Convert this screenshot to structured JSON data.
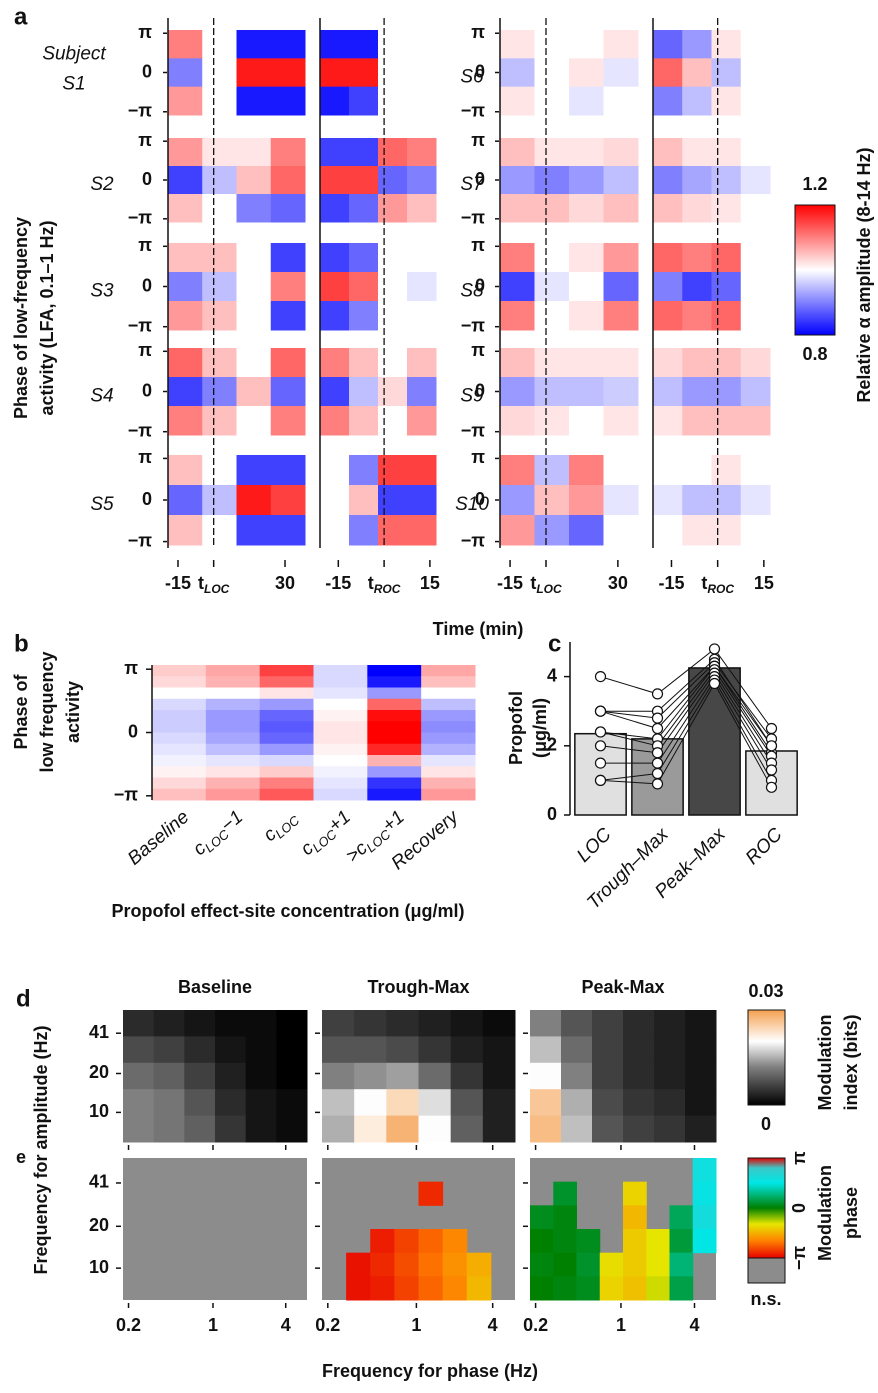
{
  "chart_data": [
    {
      "type": "phase-heatmaps",
      "panel": "a",
      "y_title": [
        "Phase of low-frequency",
        "activity (LFA, 0.1–1 Hz)"
      ],
      "x_title": "Time (min)",
      "ylim": [
        -3.4,
        3.4
      ],
      "yticks": [
        {
          "value": 3.14159,
          "label": "π"
        },
        0,
        {
          "value": -3.14159,
          "label": "−π"
        }
      ],
      "segments": [
        {
          "xlim": [
            -19.2,
            38.4
          ],
          "xticks": [
            -15,
            {
              "value": 0,
              "label": "t",
              "sub": "LOC"
            },
            30
          ]
        },
        {
          "xlim": [
            -21,
            17
          ],
          "xticks": [
            -15,
            {
              "value": 0,
              "label": "t",
              "sub": "ROC"
            },
            15
          ]
        }
      ],
      "colorbar": {
        "lim": [
          0.8,
          1.2
        ],
        "ticks": [
          0.8,
          1.2
        ],
        "title": "Relative α amplitude (8-14 Hz)"
      },
      "subjects": [
        {
          "note": "Subject",
          "name": "S1",
          "values": [
            [
              [
                1.1,
                1.0,
                0.82,
                0.82
              ],
              [
                0.9,
                1.0,
                1.18,
                1.18
              ],
              [
                1.08,
                1.0,
                0.82,
                0.82
              ]
            ],
            [
              [
                0.82,
                0.82,
                1.0,
                1.0
              ],
              [
                1.18,
                1.18,
                1.0,
                1.0
              ],
              [
                0.82,
                0.85,
                1.0,
                1.0
              ]
            ]
          ]
        },
        {
          "name": "S2",
          "values": [
            [
              [
                1.08,
                1.02,
                1.02,
                1.1
              ],
              [
                0.85,
                0.95,
                1.05,
                1.12
              ],
              [
                1.05,
                1.0,
                0.9,
                0.88
              ]
            ],
            [
              [
                0.85,
                0.85,
                1.12,
                1.1
              ],
              [
                1.15,
                1.15,
                0.88,
                0.9
              ],
              [
                0.85,
                0.88,
                1.08,
                1.05
              ]
            ]
          ]
        },
        {
          "name": "S3",
          "values": [
            [
              [
                1.05,
                1.05,
                1.0,
                0.85
              ],
              [
                0.9,
                0.95,
                1.0,
                1.1
              ],
              [
                1.08,
                1.05,
                1.0,
                0.85
              ]
            ],
            [
              [
                0.85,
                0.88,
                1.0,
                1.0
              ],
              [
                1.15,
                1.12,
                1.0,
                0.98
              ],
              [
                0.85,
                0.9,
                1.0,
                1.0
              ]
            ]
          ]
        },
        {
          "name": "S4",
          "values": [
            [
              [
                1.12,
                1.05,
                1.0,
                1.12
              ],
              [
                0.85,
                0.9,
                1.05,
                0.88
              ],
              [
                1.1,
                1.05,
                1.0,
                1.1
              ]
            ],
            [
              [
                1.1,
                1.05,
                1.0,
                1.05
              ],
              [
                0.85,
                0.95,
                1.03,
                0.9
              ],
              [
                1.1,
                1.05,
                1.0,
                1.08
              ]
            ]
          ]
        },
        {
          "name": "S5",
          "values": [
            [
              [
                1.05,
                1.0,
                0.85,
                0.85
              ],
              [
                0.88,
                0.95,
                1.18,
                1.15
              ],
              [
                1.05,
                1.0,
                0.85,
                0.85
              ]
            ],
            [
              [
                1.0,
                0.9,
                1.15,
                1.15
              ],
              [
                1.0,
                1.05,
                0.85,
                0.85
              ],
              [
                1.0,
                0.9,
                1.12,
                1.12
              ]
            ]
          ]
        },
        {
          "name": "S6",
          "values": [
            [
              [
                1.02,
                1.0,
                1.0,
                1.02
              ],
              [
                0.95,
                1.0,
                1.02,
                0.98
              ],
              [
                1.02,
                1.0,
                0.98,
                1.0
              ]
            ],
            [
              [
                0.88,
                0.92,
                1.02,
                1.0
              ],
              [
                1.12,
                1.05,
                0.95,
                1.0
              ],
              [
                0.9,
                0.95,
                1.02,
                1.0
              ]
            ]
          ]
        },
        {
          "name": "S7",
          "values": [
            [
              [
                1.05,
                1.02,
                1.02,
                1.03
              ],
              [
                0.92,
                0.9,
                0.92,
                0.95
              ],
              [
                1.05,
                1.05,
                1.03,
                1.05
              ]
            ],
            [
              [
                1.05,
                1.02,
                1.02,
                1.0
              ],
              [
                0.9,
                0.93,
                0.95,
                0.98
              ],
              [
                1.05,
                1.03,
                1.02,
                1.0
              ]
            ]
          ]
        },
        {
          "name": "S8",
          "values": [
            [
              [
                1.1,
                1.0,
                1.02,
                1.08
              ],
              [
                0.85,
                0.98,
                1.0,
                0.88
              ],
              [
                1.1,
                1.0,
                1.02,
                1.1
              ]
            ],
            [
              [
                1.12,
                1.1,
                1.12,
                1.0
              ],
              [
                0.9,
                0.85,
                0.88,
                1.0
              ],
              [
                1.12,
                1.1,
                1.12,
                1.0
              ]
            ]
          ]
        },
        {
          "name": "S9",
          "values": [
            [
              [
                1.05,
                1.02,
                1.02,
                1.02
              ],
              [
                0.92,
                0.95,
                0.95,
                0.96
              ],
              [
                1.03,
                1.02,
                1.0,
                1.02
              ]
            ],
            [
              [
                1.03,
                1.05,
                1.05,
                1.03
              ],
              [
                0.95,
                0.92,
                0.92,
                0.95
              ],
              [
                1.02,
                1.05,
                1.05,
                1.05
              ]
            ]
          ]
        },
        {
          "name": "S10",
          "values": [
            [
              [
                1.1,
                0.95,
                1.1,
                1.0
              ],
              [
                0.92,
                1.05,
                1.08,
                0.98
              ],
              [
                1.08,
                0.92,
                0.88,
                1.0
              ]
            ],
            [
              [
                1.0,
                1.0,
                1.02,
                1.0
              ],
              [
                0.98,
                0.95,
                0.95,
                0.98
              ],
              [
                1.0,
                1.02,
                1.02,
                1.0
              ]
            ]
          ]
        }
      ]
    },
    {
      "type": "heatmap",
      "panel": "b",
      "y_title": [
        "Phase of",
        "low frequency",
        "activity"
      ],
      "x_title": "Propofol effect-site concentration (μg/ml)",
      "categories": [
        {
          "text": "Baseline"
        },
        {
          "text": "c",
          "sub": "LOC",
          "after": "−1"
        },
        {
          "text": "c",
          "sub": "LOC"
        },
        {
          "text": "c",
          "sub": "LOC",
          "after": "+1"
        },
        {
          "text": ">c",
          "sub": "LOC",
          "after": "+1"
        },
        {
          "text": "Recovery"
        }
      ],
      "ylim": [
        -3.35,
        3.35
      ],
      "yticks": [
        {
          "value": 3.14159,
          "label": "π"
        },
        0,
        {
          "value": -3.14159,
          "label": "−π"
        }
      ],
      "values": [
        [
          1.04,
          1.03,
          1.0,
          0.97,
          0.96,
          0.96,
          0.97,
          0.98,
          0.99,
          1.01,
          1.03,
          1.05
        ],
        [
          1.07,
          1.06,
          1.0,
          0.94,
          0.92,
          0.92,
          0.93,
          0.95,
          0.98,
          1.02,
          1.06,
          1.08
        ],
        [
          1.15,
          1.12,
          1.02,
          0.92,
          0.88,
          0.87,
          0.88,
          0.92,
          0.97,
          1.04,
          1.1,
          1.13
        ],
        [
          0.97,
          0.97,
          0.98,
          1.0,
          1.01,
          1.02,
          1.02,
          1.01,
          1.0,
          0.99,
          0.98,
          0.97
        ],
        [
          0.8,
          0.82,
          0.92,
          1.12,
          1.19,
          1.2,
          1.2,
          1.17,
          1.06,
          0.92,
          0.84,
          0.82
        ],
        [
          1.07,
          1.05,
          1.0,
          0.95,
          0.92,
          0.91,
          0.92,
          0.94,
          0.98,
          1.02,
          1.06,
          1.08
        ]
      ]
    },
    {
      "type": "bar",
      "panel": "c",
      "y_title": [
        "Propofol",
        "(μg/ml)"
      ],
      "categories": [
        "LOC",
        "Trough–Max",
        "Peak–Max",
        "ROC"
      ],
      "values": [
        2.35,
        2.2,
        4.25,
        1.85
      ],
      "colors": [
        "#e0e0e0",
        "#9a9a9a",
        "#474747",
        "#e0e0e0"
      ],
      "subjects": [
        [
          4,
          3.5,
          4.8,
          2.5
        ],
        [
          3,
          3,
          4.5,
          2
        ],
        [
          3,
          2.8,
          4.4,
          2.2
        ],
        [
          3,
          2.5,
          4.3,
          1.8
        ],
        [
          2.4,
          2.2,
          4.3,
          2
        ],
        [
          2.4,
          2,
          4.2,
          1.7
        ],
        [
          2,
          1.8,
          4.1,
          1.5
        ],
        [
          1.5,
          1.5,
          4,
          1.3
        ],
        [
          1,
          1.2,
          3.9,
          1
        ],
        [
          1,
          0.9,
          3.8,
          0.8
        ]
      ],
      "ylim": [
        0,
        5
      ],
      "yticks": [
        0,
        2,
        4
      ]
    },
    {
      "type": "comodulogram",
      "panel": "d",
      "titles": [
        "Baseline",
        "Trough-Max",
        "Peak-Max"
      ],
      "y_title": "Frequency for amplitude (Hz)",
      "xlim": [
        0.18,
        6
      ],
      "ylim": [
        5.9,
        62
      ],
      "xticks": [
        0.2,
        1,
        4
      ],
      "yticks": [
        10,
        20,
        41
      ],
      "values": [
        [
          [
            0.004,
            0.003,
            0.002,
            0.001,
            0.001,
            0.0
          ],
          [
            0.007,
            0.006,
            0.004,
            0.002,
            0.001,
            0.0
          ],
          [
            0.01,
            0.009,
            0.006,
            0.003,
            0.001,
            0.0
          ],
          [
            0.012,
            0.011,
            0.008,
            0.004,
            0.002,
            0.001
          ],
          [
            0.012,
            0.011,
            0.009,
            0.005,
            0.002,
            0.001
          ]
        ],
        [
          [
            0.006,
            0.005,
            0.004,
            0.003,
            0.002,
            0.001
          ],
          [
            0.008,
            0.008,
            0.007,
            0.005,
            0.003,
            0.002
          ],
          [
            0.012,
            0.013,
            0.014,
            0.01,
            0.005,
            0.002
          ],
          [
            0.016,
            0.02,
            0.024,
            0.018,
            0.008,
            0.003
          ],
          [
            0.015,
            0.022,
            0.028,
            0.02,
            0.009,
            0.003
          ]
        ],
        [
          [
            0.012,
            0.008,
            0.006,
            0.004,
            0.003,
            0.002
          ],
          [
            0.016,
            0.01,
            0.006,
            0.004,
            0.003,
            0.002
          ],
          [
            0.02,
            0.012,
            0.006,
            0.004,
            0.003,
            0.002
          ],
          [
            0.026,
            0.015,
            0.007,
            0.005,
            0.004,
            0.002
          ],
          [
            0.027,
            0.016,
            0.008,
            0.006,
            0.005,
            0.003
          ]
        ]
      ],
      "colorbar": {
        "lim": [
          0,
          0.03
        ],
        "ticks": [
          0,
          0.03
        ],
        "title": [
          "Modulation",
          "index (bits)"
        ]
      }
    },
    {
      "type": "phase-map",
      "panel": "e",
      "x_title": "Frequency for phase (Hz)",
      "xlim": [
        0.18,
        6
      ],
      "ylim": [
        5.9,
        62
      ],
      "xticks": [
        0.2,
        1,
        4
      ],
      "yticks": [
        10,
        20,
        41
      ],
      "values": [
        [
          [
            null,
            null,
            null,
            null,
            null,
            null,
            null,
            null
          ],
          [
            null,
            null,
            null,
            null,
            null,
            null,
            null,
            null
          ],
          [
            null,
            null,
            null,
            null,
            null,
            null,
            null,
            null
          ],
          [
            null,
            null,
            null,
            null,
            null,
            null,
            null,
            null
          ],
          [
            null,
            null,
            null,
            null,
            null,
            null,
            null,
            null
          ],
          [
            null,
            null,
            null,
            null,
            null,
            null,
            null,
            null
          ]
        ],
        [
          [
            null,
            null,
            null,
            null,
            null,
            null,
            null,
            null
          ],
          [
            null,
            null,
            null,
            null,
            -2.8,
            null,
            null,
            null
          ],
          [
            null,
            null,
            null,
            null,
            null,
            null,
            null,
            null
          ],
          [
            null,
            null,
            -2.9,
            -2.6,
            -2.3,
            -2.0,
            null,
            null
          ],
          [
            null,
            -3.0,
            -2.8,
            -2.5,
            -2.2,
            -1.9,
            -1.6,
            null
          ],
          [
            null,
            -3.0,
            -2.9,
            -2.6,
            -2.3,
            -2.0,
            -1.5,
            null
          ]
        ],
        [
          [
            null,
            null,
            null,
            null,
            null,
            null,
            null,
            1.8
          ],
          [
            null,
            0.3,
            null,
            null,
            -1.2,
            null,
            null,
            1.7
          ],
          [
            0.2,
            0.1,
            null,
            null,
            -1.5,
            null,
            0.6,
            1.9
          ],
          [
            0.0,
            0.1,
            0.2,
            null,
            -1.3,
            -1.0,
            0.4,
            1.6
          ],
          [
            0.1,
            0.0,
            0.3,
            -1.1,
            -1.3,
            -1.0,
            0.8,
            null
          ],
          [
            0.0,
            0.1,
            0.2,
            -1.2,
            -1.4,
            -0.9,
            0.5,
            null
          ]
        ]
      ],
      "colorbar": {
        "lim": [
          -3.14159,
          3.14159
        ],
        "ticks": [
          {
            "value": 3.14159,
            "label": "π"
          },
          0,
          {
            "value": -3.14159,
            "label": "−π"
          }
        ],
        "na_label": "n.s.",
        "title": [
          "Modulation",
          "phase"
        ]
      }
    }
  ]
}
